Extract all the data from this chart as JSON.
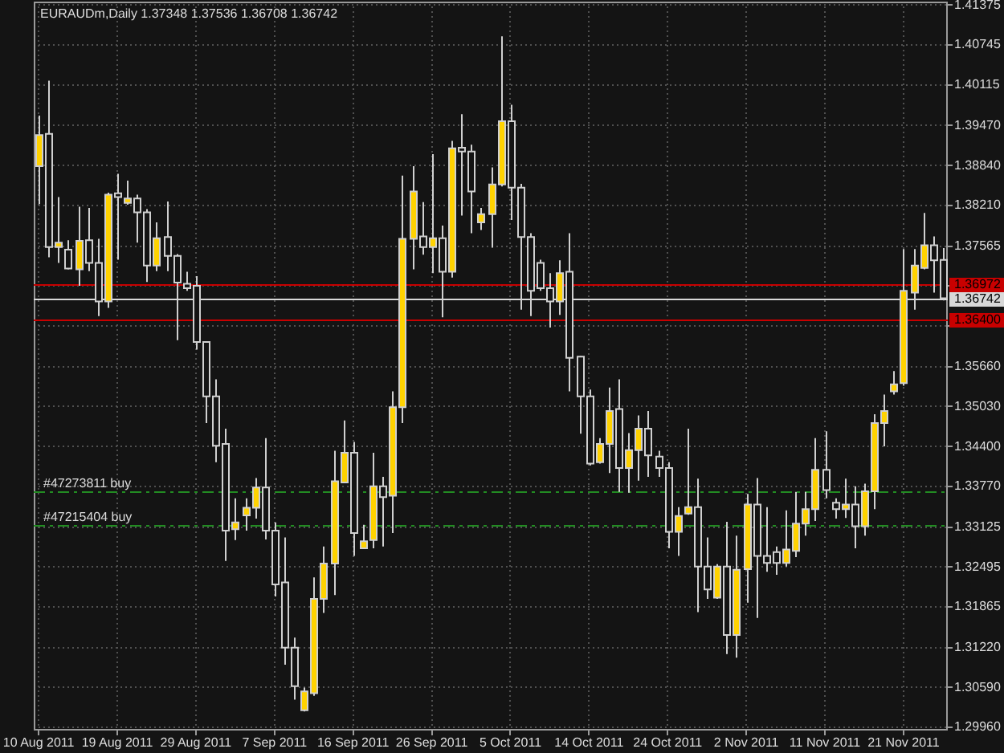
{
  "chart_data": {
    "type": "candlestick",
    "title": "EURAUDm,Daily 1.37348 1.37536 1.36708 1.36742",
    "categories": [
      "10 Aug 2011",
      null,
      null,
      null,
      null,
      null,
      null,
      null,
      "19 Aug 2011",
      null,
      null,
      null,
      null,
      null,
      null,
      null,
      "29 Aug 2011",
      null,
      null,
      null,
      null,
      null,
      null,
      null,
      "7 Sep 2011",
      null,
      null,
      null,
      null,
      null,
      null,
      null,
      "16 Sep 2011",
      null,
      null,
      null,
      null,
      null,
      null,
      null,
      "26 Sep 2011",
      null,
      null,
      null,
      null,
      null,
      null,
      null,
      "5 Oct 2011",
      null,
      null,
      null,
      null,
      null,
      null,
      null,
      "14 Oct 2011",
      null,
      null,
      null,
      null,
      null,
      null,
      null,
      "24 Oct 2011",
      null,
      null,
      null,
      null,
      null,
      null,
      null,
      "2 Nov 2011",
      null,
      null,
      null,
      null,
      null,
      null,
      null,
      "11 Nov 2011",
      null,
      null,
      null,
      null,
      null,
      null,
      null,
      "21 Nov 2011",
      null,
      null,
      null,
      null
    ],
    "ohlc": [
      [
        1.3883,
        1.3963,
        1.3823,
        1.3932
      ],
      [
        1.3934,
        1.4018,
        1.3739,
        1.3755
      ],
      [
        1.3755,
        1.3834,
        1.373,
        1.3762
      ],
      [
        1.3751,
        1.3766,
        1.372,
        1.3721
      ],
      [
        1.372,
        1.3819,
        1.3694,
        1.3765
      ],
      [
        1.3766,
        1.3817,
        1.3717,
        1.373
      ],
      [
        1.373,
        1.3768,
        1.3646,
        1.3669
      ],
      [
        1.3669,
        1.3841,
        1.3659,
        1.3838
      ],
      [
        1.384,
        1.3871,
        1.3735,
        1.3834
      ],
      [
        1.3825,
        1.386,
        1.3822,
        1.3832
      ],
      [
        1.3832,
        1.3838,
        1.3762,
        1.381
      ],
      [
        1.381,
        1.3815,
        1.37,
        1.3726
      ],
      [
        1.3726,
        1.3794,
        1.3717,
        1.3769
      ],
      [
        1.3771,
        1.3827,
        1.3717,
        1.3741
      ],
      [
        1.3741,
        1.3744,
        1.3608,
        1.3699
      ],
      [
        1.3697,
        1.3716,
        1.3686,
        1.369
      ],
      [
        1.3694,
        1.3709,
        1.3593,
        1.3605
      ],
      [
        1.3605,
        1.3606,
        1.3477,
        1.3519
      ],
      [
        1.3519,
        1.3546,
        1.3415,
        1.3441
      ],
      [
        1.3444,
        1.3468,
        1.3259,
        1.3307
      ],
      [
        1.3309,
        1.3358,
        1.3292,
        1.332
      ],
      [
        1.3331,
        1.3358,
        1.3307,
        1.3343
      ],
      [
        1.3343,
        1.339,
        1.3326,
        1.3375
      ],
      [
        1.3375,
        1.3453,
        1.3293,
        1.3307
      ],
      [
        1.3307,
        1.332,
        1.3203,
        1.3222
      ],
      [
        1.3225,
        1.3296,
        1.3095,
        1.3122
      ],
      [
        1.3122,
        1.3138,
        1.304,
        1.3061
      ],
      [
        1.3023,
        1.3059,
        1.3021,
        1.3053
      ],
      [
        1.305,
        1.3233,
        1.3046,
        1.3199
      ],
      [
        1.3199,
        1.3282,
        1.3177,
        1.3255
      ],
      [
        1.3255,
        1.3433,
        1.3205,
        1.3385
      ],
      [
        1.3383,
        1.3481,
        1.3382,
        1.343
      ],
      [
        1.343,
        1.3447,
        1.3267,
        1.3303
      ],
      [
        1.3279,
        1.3316,
        1.3278,
        1.329
      ],
      [
        1.3292,
        1.343,
        1.3279,
        1.3377
      ],
      [
        1.3377,
        1.3392,
        1.3282,
        1.336
      ],
      [
        1.3362,
        1.3527,
        1.3303,
        1.3502
      ],
      [
        1.3502,
        1.3868,
        1.3477,
        1.3768
      ],
      [
        1.3768,
        1.3883,
        1.372,
        1.3843
      ],
      [
        1.3772,
        1.3826,
        1.3743,
        1.3755
      ],
      [
        1.3755,
        1.3902,
        1.3714,
        1.3769
      ],
      [
        1.3769,
        1.3789,
        1.3644,
        1.3716
      ],
      [
        1.3716,
        1.3923,
        1.3707,
        1.3911
      ],
      [
        1.3912,
        1.3965,
        1.3805,
        1.3906
      ],
      [
        1.3906,
        1.3917,
        1.3777,
        1.3843
      ],
      [
        1.3794,
        1.3817,
        1.3782,
        1.3807
      ],
      [
        1.3807,
        1.3881,
        1.3754,
        1.3854
      ],
      [
        1.3854,
        1.4088,
        1.3851,
        1.3954
      ],
      [
        1.3954,
        1.398,
        1.3798,
        1.3849
      ],
      [
        1.3849,
        1.3855,
        1.3656,
        1.3771
      ],
      [
        1.3771,
        1.3777,
        1.3646,
        1.3686
      ],
      [
        1.373,
        1.3735,
        1.3686,
        1.369
      ],
      [
        1.369,
        1.3714,
        1.3628,
        1.3669
      ],
      [
        1.3669,
        1.3734,
        1.3648,
        1.3714
      ],
      [
        1.3716,
        1.3777,
        1.3527,
        1.358
      ],
      [
        1.3582,
        1.3583,
        1.346,
        1.3519
      ],
      [
        1.3519,
        1.353,
        1.341,
        1.3413
      ],
      [
        1.3415,
        1.3453,
        1.3413,
        1.3444
      ],
      [
        1.3444,
        1.3533,
        1.3398,
        1.3496
      ],
      [
        1.3499,
        1.3546,
        1.3368,
        1.3406
      ],
      [
        1.3406,
        1.3461,
        1.3367,
        1.3434
      ],
      [
        1.3434,
        1.3489,
        1.3386,
        1.3468
      ],
      [
        1.3468,
        1.3496,
        1.3392,
        1.3426
      ],
      [
        1.3424,
        1.3433,
        1.3392,
        1.3406
      ],
      [
        1.3406,
        1.3415,
        1.3279,
        1.3305
      ],
      [
        1.3305,
        1.3344,
        1.3267,
        1.333
      ],
      [
        1.3334,
        1.3468,
        1.3332,
        1.3344
      ],
      [
        1.3344,
        1.3389,
        1.3178,
        1.325
      ],
      [
        1.325,
        1.3296,
        1.3199,
        1.3214
      ],
      [
        1.3201,
        1.3254,
        1.3199,
        1.325
      ],
      [
        1.325,
        1.3321,
        1.3112,
        1.3142
      ],
      [
        1.3142,
        1.3299,
        1.3106,
        1.3245
      ],
      [
        1.3246,
        1.3365,
        1.3193,
        1.3348
      ],
      [
        1.3348,
        1.339,
        1.3169,
        1.3267
      ],
      [
        1.3267,
        1.3344,
        1.3242,
        1.3256
      ],
      [
        1.3273,
        1.3282,
        1.3237,
        1.3256
      ],
      [
        1.3256,
        1.3339,
        1.325,
        1.3277
      ],
      [
        1.3275,
        1.3368,
        1.3265,
        1.3318
      ],
      [
        1.3318,
        1.3368,
        1.3299,
        1.3341
      ],
      [
        1.3341,
        1.3453,
        1.3322,
        1.3403
      ],
      [
        1.3403,
        1.3464,
        1.3358,
        1.3371
      ],
      [
        1.3351,
        1.3358,
        1.3326,
        1.3341
      ],
      [
        1.3341,
        1.3389,
        1.3327,
        1.3348
      ],
      [
        1.3348,
        1.3377,
        1.3279,
        1.3314
      ],
      [
        1.3314,
        1.3381,
        1.3299,
        1.3369
      ],
      [
        1.3369,
        1.3491,
        1.3341,
        1.3477
      ],
      [
        1.3477,
        1.3522,
        1.344,
        1.3496
      ],
      [
        1.3527,
        1.3559,
        1.3522,
        1.3538
      ],
      [
        1.354,
        1.3752,
        1.3536,
        1.3686
      ],
      [
        1.3683,
        1.3752,
        1.3656,
        1.3726
      ],
      [
        1.3722,
        1.3809,
        1.372,
        1.3758
      ],
      [
        1.3758,
        1.3772,
        1.3683,
        1.3734
      ],
      [
        1.37348,
        1.37536,
        1.36708,
        1.36742
      ]
    ],
    "color": "#d0d0d0",
    "colors": [
      "#ffd200",
      "#141414",
      "#ffd200",
      "#141414",
      "#ffd200",
      "#141414",
      "#141414",
      "#ffd200",
      "#141414",
      "#ffd200",
      "#141414",
      "#141414",
      "#ffd200",
      "#141414",
      "#141414",
      "#141414",
      "#141414",
      "#141414",
      "#141414",
      "#141414",
      "#ffd200",
      "#ffd200",
      "#ffd200",
      "#141414",
      "#141414",
      "#141414",
      "#141414",
      "#ffd200",
      "#ffd200",
      "#ffd200",
      "#ffd200",
      "#ffd200",
      "#141414",
      "#ffd200",
      "#ffd200",
      "#141414",
      "#ffd200",
      "#ffd200",
      "#ffd200",
      "#141414",
      "#ffd200",
      "#141414",
      "#ffd200",
      "#141414",
      "#141414",
      "#ffd200",
      "#ffd200",
      "#ffd200",
      "#141414",
      "#141414",
      "#141414",
      "#141414",
      "#141414",
      "#ffd200",
      "#141414",
      "#141414",
      "#141414",
      "#ffd200",
      "#ffd200",
      "#141414",
      "#ffd200",
      "#ffd200",
      "#141414",
      "#141414",
      "#141414",
      "#ffd200",
      "#ffd200",
      "#141414",
      "#141414",
      "#ffd200",
      "#141414",
      "#ffd200",
      "#ffd200",
      "#141414",
      "#141414",
      "#141414",
      "#ffd200",
      "#ffd200",
      "#ffd200",
      "#ffd200",
      "#141414",
      "#141414",
      "#ffd200",
      "#141414",
      "#ffd200",
      "#ffd200",
      "#ffd200",
      "#ffd200",
      "#ffd200",
      "#ffd200",
      "#ffd200",
      "#141414",
      "#141414"
    ],
    "ylim": [
      1.2991,
      1.4143
    ],
    "yticks": [
      {
        "value": 1.41375,
        "label": "1.41375"
      },
      {
        "value": 1.40745,
        "label": "1.40745"
      },
      {
        "value": 1.40115,
        "label": "1.40115"
      },
      {
        "value": 1.3947,
        "label": "1.39470"
      },
      {
        "value": 1.3884,
        "label": "1.38840"
      },
      {
        "value": 1.3821,
        "label": "1.38210"
      },
      {
        "value": 1.37565,
        "label": "1.37565"
      },
      {
        "value": 1.36935,
        "label": null
      },
      {
        "value": 1.36305,
        "label": null
      },
      {
        "value": 1.3566,
        "label": "1.35660"
      },
      {
        "value": 1.3503,
        "label": "1.35030"
      },
      {
        "value": 1.344,
        "label": "1.34400"
      },
      {
        "value": 1.3377,
        "label": "1.33770"
      },
      {
        "value": 1.33125,
        "label": "1.33125"
      },
      {
        "value": 1.32495,
        "label": "1.32495"
      },
      {
        "value": 1.31865,
        "label": "1.31865"
      },
      {
        "value": 1.3122,
        "label": "1.31220"
      },
      {
        "value": 1.3059,
        "label": "1.30590"
      },
      {
        "value": 1.2996,
        "label": "1.29960"
      }
    ],
    "grid": true,
    "ref_lines": [
      {
        "axis": "y",
        "value": 1.36972,
        "label": "1.36972",
        "color": "#c80000"
      },
      {
        "axis": "y",
        "value": 1.36742,
        "label": "1.36742",
        "color": "#d8d8d8"
      },
      {
        "axis": "y",
        "value": 1.364,
        "label": "1.36400",
        "color": "#c80000"
      },
      {
        "axis": "y",
        "value": 1.337,
        "label": "#47273811 buy",
        "color": "#228b22",
        "line_style": "dashed"
      },
      {
        "axis": "y",
        "value": 1.3315,
        "label": "#47215404 buy",
        "color": "#228b22",
        "line_style": "dashed"
      }
    ]
  }
}
